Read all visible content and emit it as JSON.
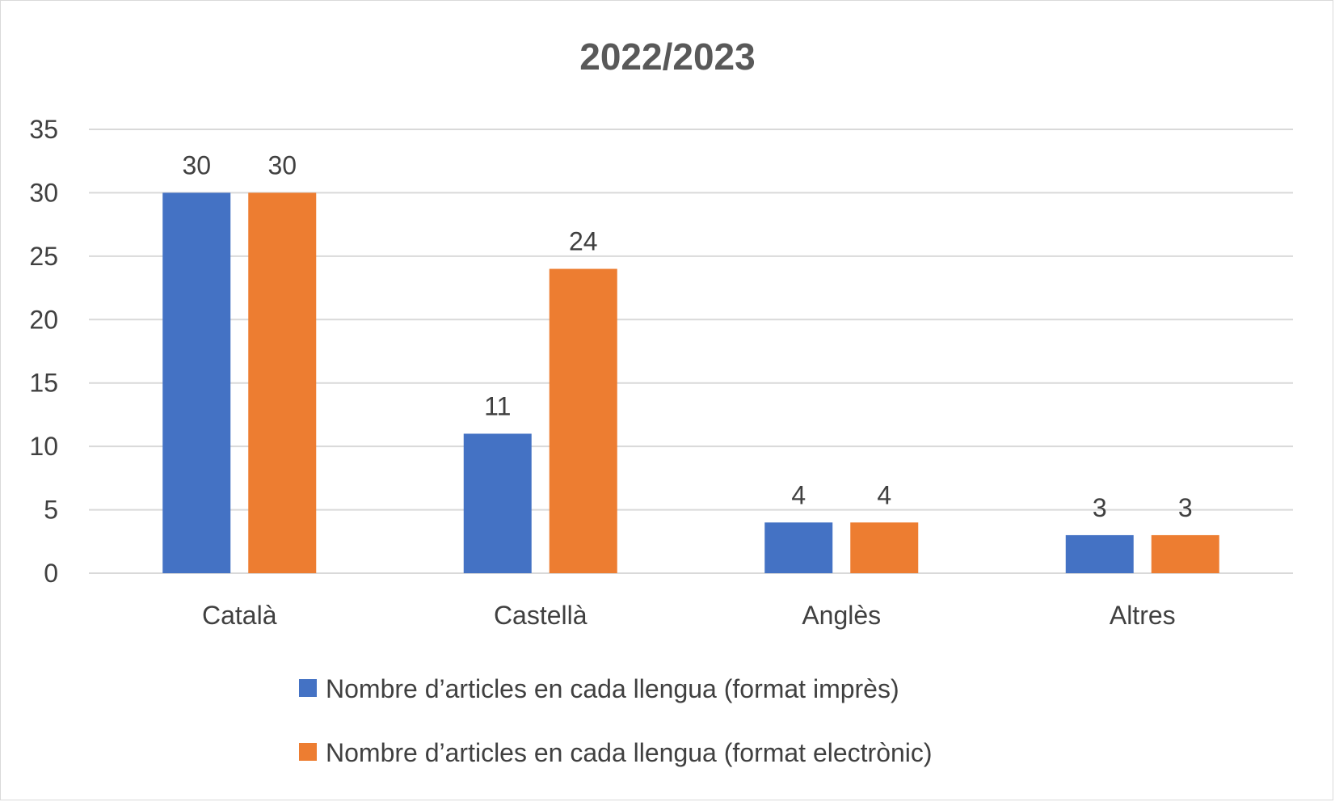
{
  "chart_data": {
    "type": "bar",
    "title": "2022/2023",
    "xlabel": "",
    "ylabel": "",
    "categories": [
      "Català",
      "Castellà",
      "Anglès",
      "Altres"
    ],
    "series": [
      {
        "name": "Nombre d’articles en cada llengua (format imprès)",
        "values": [
          30,
          11,
          4,
          3
        ],
        "color": "#4472c4"
      },
      {
        "name": "Nombre d’articles en cada llengua (format electrònic)",
        "values": [
          30,
          24,
          4,
          3
        ],
        "color": "#ed7d31"
      }
    ],
    "ylim": [
      0,
      35
    ],
    "yticks": [
      0,
      5,
      10,
      15,
      20,
      25,
      30,
      35
    ],
    "grid": true,
    "data_labels": true,
    "legend_position": "bottom"
  }
}
